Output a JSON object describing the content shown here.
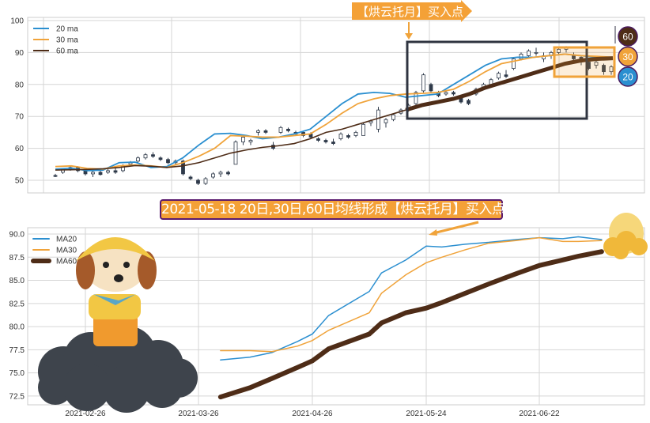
{
  "colors": {
    "ma20": "#2b8fd0",
    "ma30": "#f0a33a",
    "ma60": "#4e2c17",
    "candle": "#2f3a4a",
    "box_dark": "#2f3440",
    "box_orange": "#f0a33a"
  },
  "chart_data": [
    {
      "type": "line",
      "title": "",
      "ylim": [
        46,
        101
      ],
      "yticks": [
        "100",
        "90",
        "80",
        "70",
        "60",
        "50"
      ],
      "grid": true,
      "legend": {
        "placement": "top-left",
        "entries": [
          "20 ma",
          "30 ma",
          "60 ma"
        ]
      },
      "candles_ohlc": [
        [
          51.5,
          52,
          51,
          51.2
        ],
        [
          52.5,
          53.8,
          52,
          53.5
        ],
        [
          53.5,
          54.5,
          53,
          54
        ],
        [
          54,
          54.4,
          52.5,
          53
        ],
        [
          53,
          53.5,
          51.5,
          52
        ],
        [
          52,
          53,
          51,
          52.5
        ],
        [
          52.5,
          53,
          51.5,
          51.8
        ],
        [
          52.5,
          53.5,
          52,
          53
        ],
        [
          53,
          54,
          52,
          52.5
        ],
        [
          53,
          55,
          52.5,
          54.5
        ],
        [
          55,
          56,
          54.5,
          55.5
        ],
        [
          56,
          57.5,
          55.5,
          57
        ],
        [
          57,
          58.5,
          56.5,
          58
        ],
        [
          58,
          58.8,
          57,
          57.5
        ],
        [
          57,
          57.5,
          56,
          56.5
        ],
        [
          56.5,
          57,
          55,
          55.5
        ],
        [
          55.5,
          56.5,
          55,
          56
        ],
        [
          56,
          56.5,
          51.5,
          52
        ],
        [
          51,
          51.5,
          50,
          50.5
        ],
        [
          50,
          50.5,
          48.5,
          49
        ],
        [
          49,
          51,
          48.5,
          50.5
        ],
        [
          51,
          52.5,
          50.5,
          52
        ],
        [
          52,
          53,
          51,
          52.5
        ],
        [
          52.5,
          53,
          51.5,
          52
        ],
        [
          55,
          62.5,
          55,
          62
        ],
        [
          62,
          64,
          61,
          63.5
        ],
        [
          62,
          63,
          61,
          62.5
        ],
        [
          65,
          66,
          64,
          65.5
        ],
        [
          65.5,
          66,
          64.5,
          65
        ],
        [
          61,
          62,
          59.5,
          60
        ],
        [
          65,
          67,
          64.5,
          66.5
        ],
        [
          66,
          66.5,
          65,
          65.5
        ],
        [
          65,
          65.5,
          64,
          64.5
        ],
        [
          65,
          65.5,
          63.5,
          64
        ],
        [
          64.5,
          65,
          63,
          63.5
        ],
        [
          63,
          63.5,
          62,
          62.5
        ],
        [
          62.5,
          63,
          61.5,
          62
        ],
        [
          62,
          63,
          61,
          61.5
        ],
        [
          63,
          65,
          62.5,
          64.5
        ],
        [
          64,
          64.5,
          63,
          63.5
        ],
        [
          64,
          65.5,
          63.5,
          65
        ],
        [
          64,
          68,
          64,
          67.5
        ],
        [
          68,
          69,
          67,
          68.5
        ],
        [
          66,
          73,
          65,
          72
        ],
        [
          68,
          69.5,
          66.5,
          69
        ],
        [
          69,
          71,
          68.5,
          70.5
        ],
        [
          71,
          72.5,
          70.5,
          72
        ],
        [
          72,
          74,
          71.5,
          73.5
        ],
        [
          74,
          78,
          73.5,
          77.5
        ],
        [
          78,
          83.5,
          77.5,
          83
        ],
        [
          80,
          80.5,
          77.5,
          78
        ],
        [
          77.5,
          78,
          76,
          76.5
        ],
        [
          77,
          78,
          76.5,
          77.5
        ],
        [
          77.5,
          78,
          76.5,
          77
        ],
        [
          76,
          76.5,
          74,
          74.5
        ],
        [
          75,
          75.5,
          73.5,
          74
        ],
        [
          77,
          79,
          76.5,
          78.5
        ],
        [
          79,
          80.5,
          78.5,
          80
        ],
        [
          80,
          82,
          79.5,
          81.5
        ],
        [
          82,
          84,
          81.5,
          83.5
        ],
        [
          83,
          84.5,
          82,
          82.5
        ],
        [
          85,
          88.5,
          84.5,
          88
        ],
        [
          88,
          90,
          87.5,
          89.5
        ],
        [
          89,
          91,
          88.5,
          90.5
        ],
        [
          90,
          91.5,
          89,
          90
        ],
        [
          88,
          90,
          87,
          89
        ],
        [
          89,
          90.5,
          88,
          90
        ],
        [
          90,
          91.5,
          89.5,
          91
        ],
        [
          91,
          92,
          90,
          91.5
        ],
        [
          89,
          90,
          87.5,
          88
        ],
        [
          88.5,
          89,
          86,
          87
        ],
        [
          87,
          88,
          84.5,
          85
        ],
        [
          86,
          87.5,
          85,
          87
        ],
        [
          86,
          86.5,
          83,
          84
        ],
        [
          84,
          86,
          83,
          85.5
        ]
      ],
      "series": [
        {
          "name": "20 ma",
          "values": [
            53.5,
            53.8,
            53,
            53.2,
            55.5,
            55.7,
            54,
            54.3,
            57,
            61,
            64.5,
            64.7,
            64,
            63,
            63.5,
            64.5,
            66,
            70,
            74,
            77,
            77.5,
            77.2,
            76,
            76.5,
            77,
            80,
            83,
            86,
            88,
            88.5,
            88.5,
            89,
            89.5,
            89,
            88.5,
            88
          ]
        },
        {
          "name": "30 ma",
          "values": [
            54.3,
            54.5,
            53.7,
            53.5,
            54.5,
            54.8,
            54.5,
            54,
            55.5,
            57.5,
            60,
            64,
            63.8,
            63.5,
            63.5,
            64,
            64.5,
            67.5,
            71,
            74,
            75.5,
            76.5,
            77,
            77.2,
            77.5,
            78.5,
            81,
            84,
            86.5,
            87.5,
            88.5,
            89,
            89.5,
            89,
            88.8,
            88.5
          ]
        },
        {
          "name": "60 ma",
          "values": [
            53.2,
            53.3,
            53.4,
            53.6,
            54,
            54.6,
            54.4,
            54,
            54.5,
            55.5,
            57,
            58.5,
            59.5,
            60.3,
            60.8,
            61.5,
            63,
            65,
            66,
            67.5,
            69,
            70.5,
            72,
            73.5,
            74.5,
            75.5,
            77,
            79,
            80.5,
            82,
            83.5,
            85,
            86.5,
            87.5,
            88,
            88.2
          ]
        }
      ],
      "annotations": {
        "callout": "【烘云托月】买入点",
        "badges": [
          "60",
          "30",
          "20"
        ]
      }
    },
    {
      "type": "line",
      "title": "2021-05-18 20日,30日,60日均线形成【烘云托月】买入点",
      "xlabel": "",
      "ylabel": "",
      "ylim": [
        71.9,
        90.6
      ],
      "yticks": [
        "90.0",
        "87.5",
        "85.0",
        "82.5",
        "80.0",
        "77.5",
        "75.0",
        "72.5"
      ],
      "xticks": [
        "2021-02-26",
        "2021-03-26",
        "2021-04-26",
        "2021-05-24",
        "2021-06-22"
      ],
      "grid": true,
      "legend": {
        "placement": "top-left",
        "entries": [
          "MA20",
          "MA30",
          "MA60"
        ]
      },
      "x": [
        "2021-04-01",
        "2021-04-09",
        "2021-04-15",
        "2021-04-22",
        "2021-04-26",
        "2021-04-30",
        "2021-05-10",
        "2021-05-13",
        "2021-05-19",
        "2021-05-24",
        "2021-05-28",
        "2021-06-03",
        "2021-06-09",
        "2021-06-16",
        "2021-06-22",
        "2021-06-28",
        "2021-07-02",
        "2021-07-08"
      ],
      "series": [
        {
          "name": "MA20",
          "values": [
            76.4,
            76.7,
            77.2,
            78.4,
            79.2,
            81.2,
            83.8,
            85.8,
            87.2,
            88.7,
            88.6,
            88.9,
            89.1,
            89.4,
            89.6,
            89.5,
            89.7,
            89.4
          ]
        },
        {
          "name": "MA30",
          "values": [
            77.4,
            77.4,
            77.3,
            77.9,
            78.5,
            79.6,
            81.5,
            83.6,
            85.6,
            86.9,
            87.5,
            88.3,
            89.0,
            89.3,
            89.6,
            89.2,
            89.2,
            89.3
          ]
        },
        {
          "name": "MA60",
          "values": [
            72.4,
            73.4,
            74.4,
            75.6,
            76.3,
            77.6,
            79.2,
            80.4,
            81.5,
            82.0,
            82.6,
            83.6,
            84.6,
            85.7,
            86.6,
            87.2,
            87.6,
            88.1
          ]
        }
      ]
    }
  ]
}
